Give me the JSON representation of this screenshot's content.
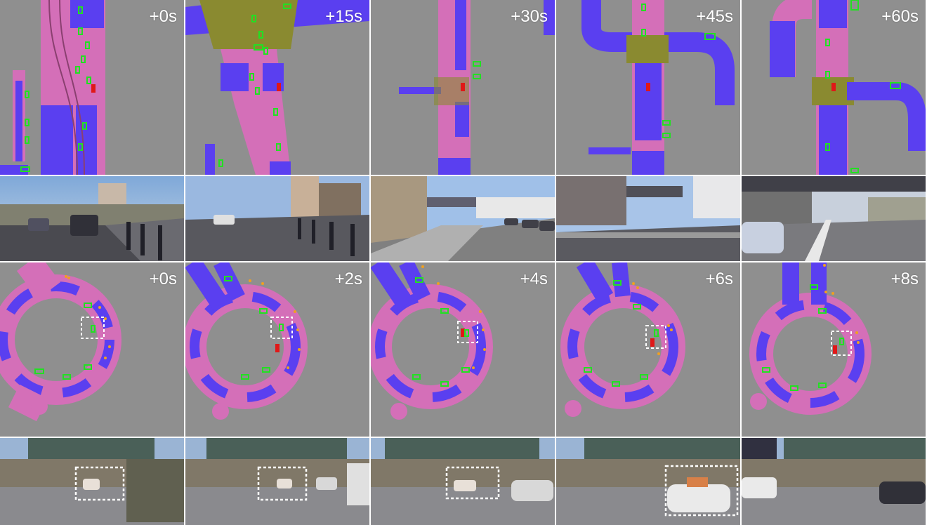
{
  "rows": [
    {
      "kind": "map",
      "labels": [
        "+0s",
        "+15s",
        "+30s",
        "+45s",
        "+60s"
      ]
    },
    {
      "kind": "camera",
      "labels": []
    },
    {
      "kind": "map",
      "labels": [
        "+0s",
        "+2s",
        "+4s",
        "+6s",
        "+8s"
      ]
    },
    {
      "kind": "camera",
      "labels": []
    }
  ],
  "colors": {
    "map_bg": "#8f8f8f",
    "lane_pink": "#d46fb8",
    "lane_blue": "#5a3ff0",
    "junction_olive": "#8a8a30",
    "ego_vehicle": "#e01818",
    "agent_box": "#22e022",
    "pedestrian": "#f0a020",
    "highlight_box": "#ffffff"
  }
}
